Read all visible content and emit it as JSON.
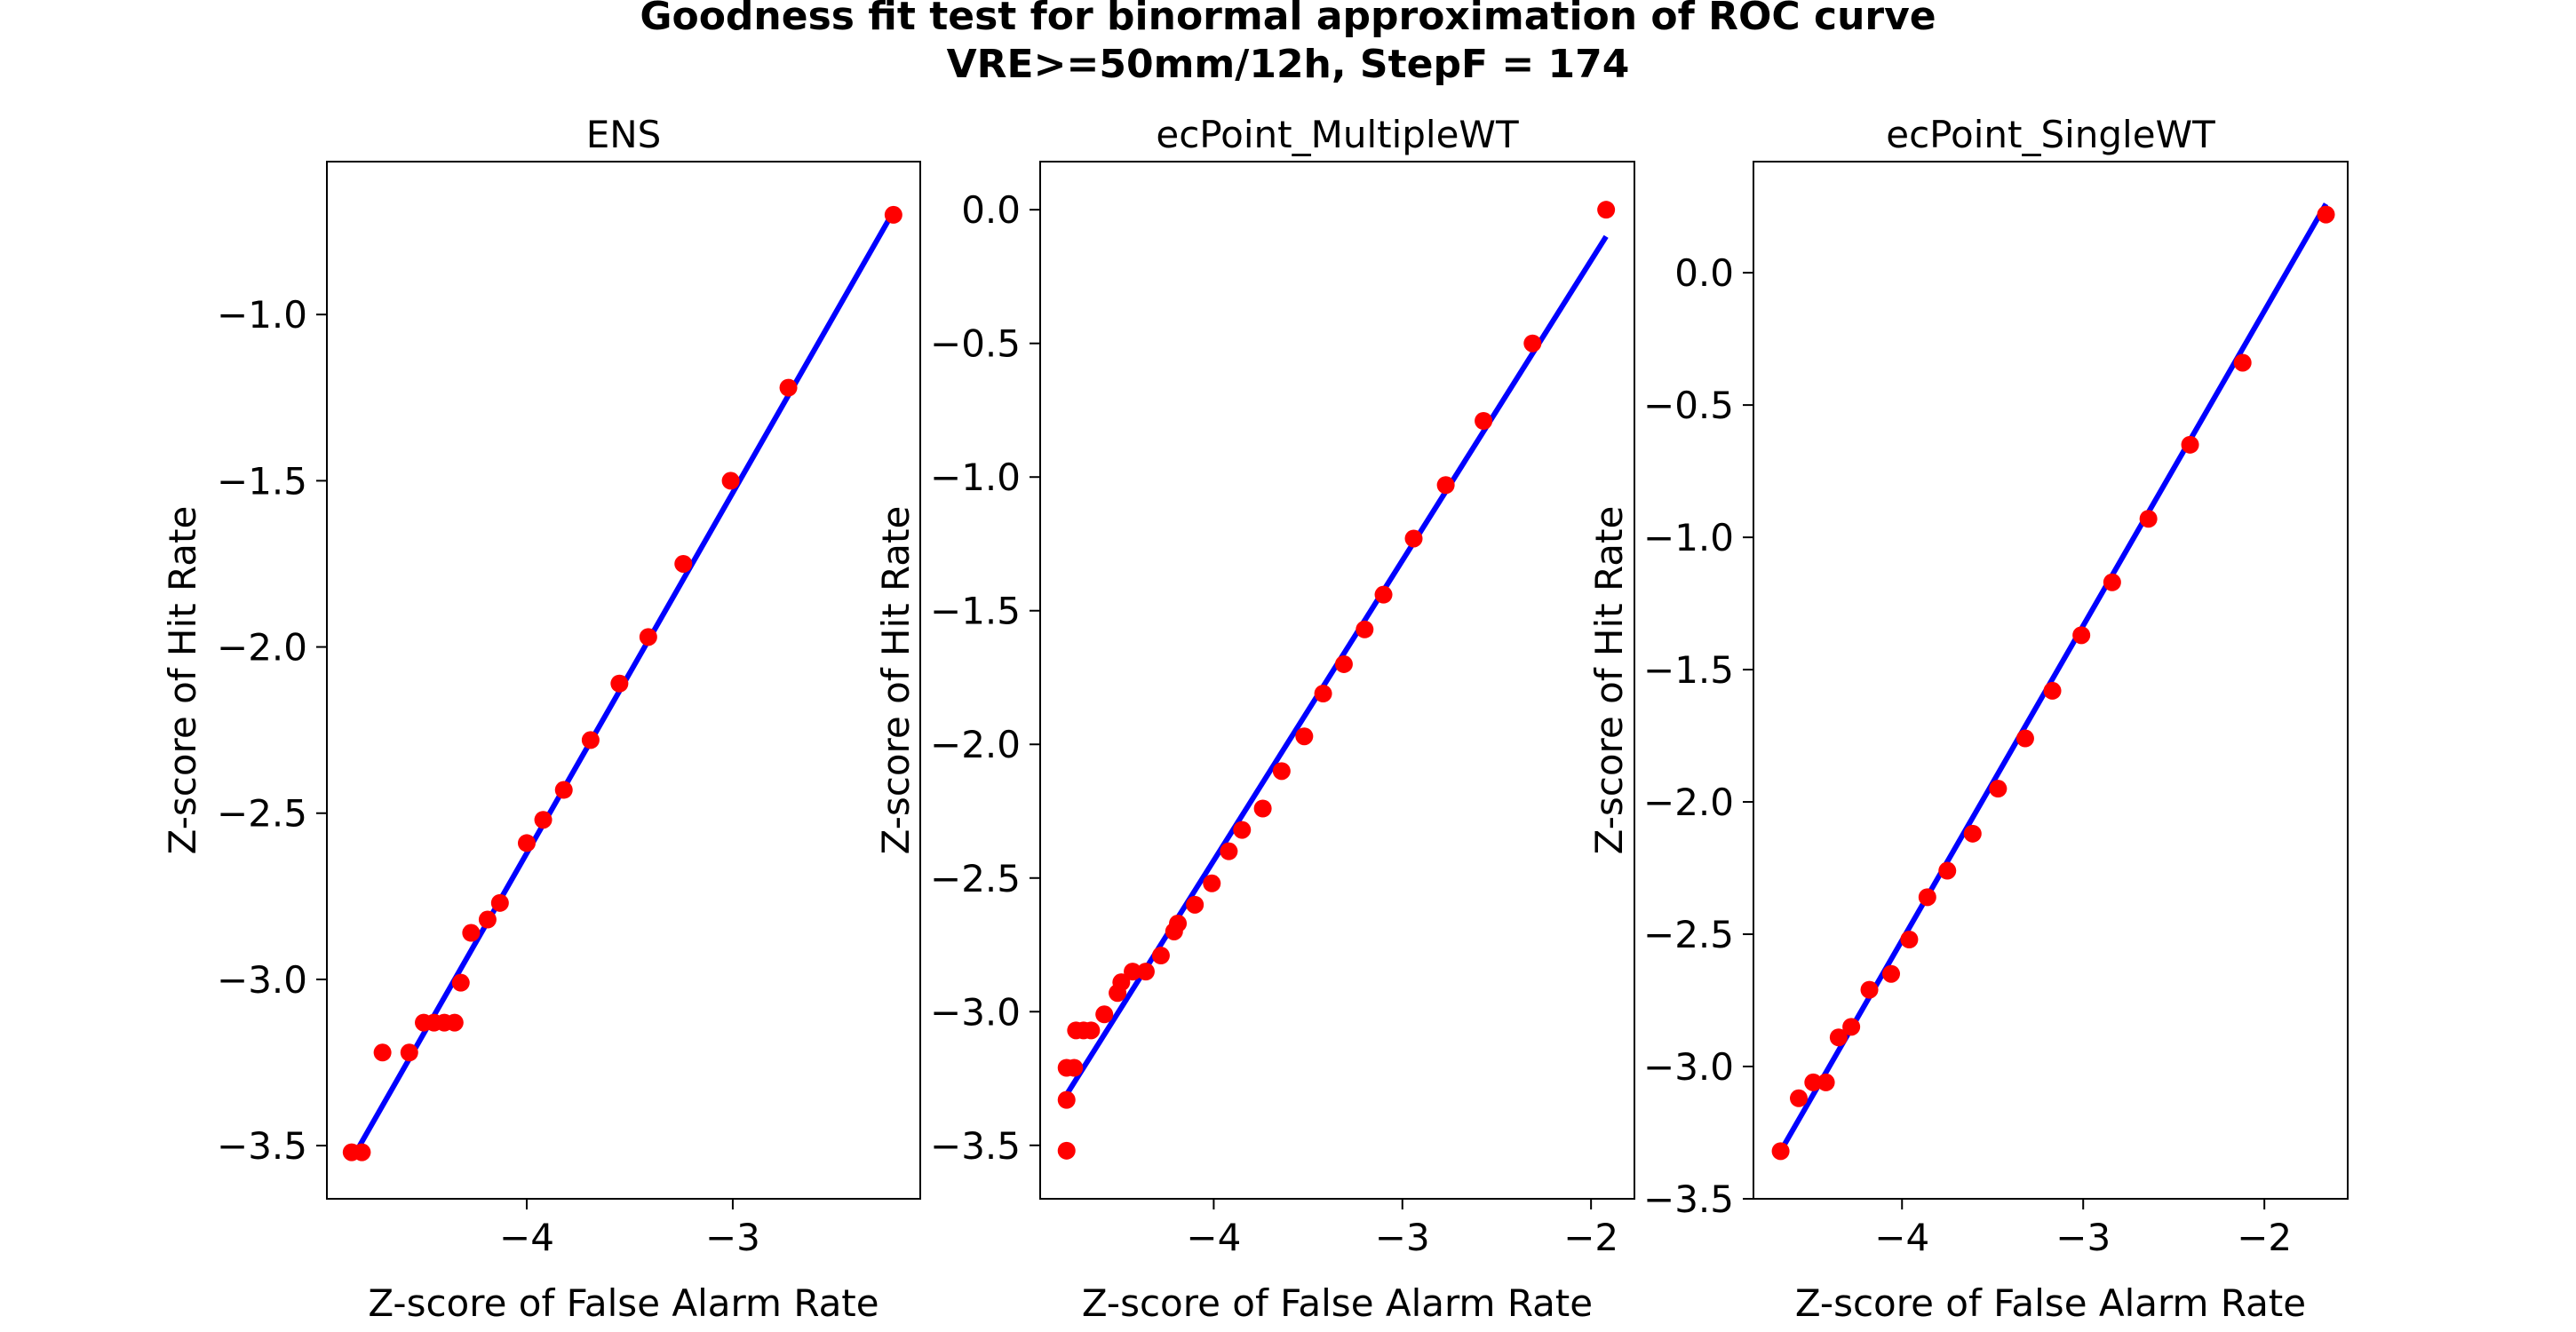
{
  "figure": {
    "title_line1": "Goodness fit test for binormal approximation of ROC curve",
    "title_line2": "VRE>=50mm/12h, StepF = 174"
  },
  "colors": {
    "line": "#0000ff",
    "points": "#ff0000",
    "axes": "#000000",
    "background": "#ffffff"
  },
  "chart_data": [
    {
      "type": "scatter",
      "title": "ENS",
      "xlabel": "Z-score of False Alarm Rate",
      "ylabel": "Z-score of Hit Rate",
      "xlim": [
        -4.97,
        -2.09
      ],
      "ylim": [
        -3.66,
        -0.54
      ],
      "xticks": [
        -4,
        -3
      ],
      "yticks": [
        -3.5,
        -3.0,
        -2.5,
        -2.0,
        -1.5,
        -1.0
      ],
      "xtick_labels": [
        "−4",
        "−3"
      ],
      "ytick_labels": [
        "−3.5",
        "−3.0",
        "−2.5",
        "−2.0",
        "−1.5",
        "−1.0"
      ],
      "grid": false,
      "series": [
        {
          "kind": "points",
          "x": [
            -4.85,
            -4.8,
            -4.7,
            -4.57,
            -4.5,
            -4.45,
            -4.4,
            -4.35,
            -4.32,
            -4.27,
            -4.19,
            -4.13,
            -4.0,
            -3.92,
            -3.82,
            -3.69,
            -3.55,
            -3.41,
            -3.24,
            -3.01,
            -2.73,
            -2.22
          ],
          "y": [
            -3.52,
            -3.52,
            -3.22,
            -3.22,
            -3.13,
            -3.13,
            -3.13,
            -3.13,
            -3.01,
            -2.86,
            -2.82,
            -2.77,
            -2.59,
            -2.52,
            -2.43,
            -2.28,
            -2.11,
            -1.97,
            -1.75,
            -1.5,
            -1.22,
            -0.7
          ]
        },
        {
          "kind": "line",
          "x": [
            -4.82,
            -2.22
          ],
          "y": [
            -3.51,
            -0.69
          ]
        }
      ]
    },
    {
      "type": "scatter",
      "title": "ecPoint_MultipleWT",
      "xlabel": "Z-score of False Alarm Rate",
      "ylabel": "Z-score of Hit Rate",
      "xlim": [
        -4.92,
        -1.77
      ],
      "ylim": [
        -3.7,
        0.18
      ],
      "xticks": [
        -4,
        -3,
        -2
      ],
      "yticks": [
        -3.5,
        -3.0,
        -2.5,
        -2.0,
        -1.5,
        -1.0,
        -0.5,
        0.0
      ],
      "xtick_labels": [
        "−4",
        "−3",
        "−2"
      ],
      "ytick_labels": [
        "−3.5",
        "−3.0",
        "−2.5",
        "−2.0",
        "−1.5",
        "−1.0",
        "−0.5",
        "0.0"
      ],
      "grid": false,
      "series": [
        {
          "kind": "points",
          "x": [
            -4.78,
            -4.78,
            -4.78,
            -4.74,
            -4.73,
            -4.69,
            -4.65,
            -4.58,
            -4.51,
            -4.49,
            -4.43,
            -4.36,
            -4.28,
            -4.21,
            -4.19,
            -4.1,
            -4.01,
            -3.92,
            -3.85,
            -3.74,
            -3.64,
            -3.52,
            -3.42,
            -3.31,
            -3.2,
            -3.1,
            -2.94,
            -2.77,
            -2.57,
            -2.31,
            -1.92
          ],
          "y": [
            -3.52,
            -3.33,
            -3.21,
            -3.21,
            -3.07,
            -3.07,
            -3.07,
            -3.01,
            -2.93,
            -2.89,
            -2.85,
            -2.85,
            -2.79,
            -2.7,
            -2.67,
            -2.6,
            -2.52,
            -2.4,
            -2.32,
            -2.24,
            -2.1,
            -1.97,
            -1.81,
            -1.7,
            -1.57,
            -1.44,
            -1.23,
            -1.03,
            -0.79,
            -0.5,
            0.0
          ]
        },
        {
          "kind": "line",
          "x": [
            -4.78,
            -1.92
          ],
          "y": [
            -3.31,
            -0.1
          ]
        }
      ]
    },
    {
      "type": "scatter",
      "title": "ecPoint_SingleWT",
      "xlabel": "Z-score of False Alarm Rate",
      "ylabel": "Z-score of Hit Rate",
      "xlim": [
        -4.82,
        -1.54
      ],
      "ylim": [
        -3.5,
        0.42
      ],
      "xticks": [
        -4,
        -3,
        -2
      ],
      "yticks": [
        -3.5,
        -3.0,
        -2.5,
        -2.0,
        -1.5,
        -1.0,
        -0.5,
        0.0
      ],
      "xtick_labels": [
        "−4",
        "−3",
        "−2"
      ],
      "ytick_labels": [
        "−3.5",
        "−3.0",
        "−2.5",
        "−2.0",
        "−1.5",
        "−1.0",
        "−0.5",
        "0.0"
      ],
      "grid": false,
      "series": [
        {
          "kind": "points",
          "x": [
            -4.67,
            -4.57,
            -4.49,
            -4.42,
            -4.35,
            -4.28,
            -4.18,
            -4.06,
            -3.96,
            -3.86,
            -3.75,
            -3.61,
            -3.47,
            -3.32,
            -3.17,
            -3.01,
            -2.84,
            -2.64,
            -2.41,
            -2.12,
            -1.66
          ],
          "y": [
            -3.32,
            -3.12,
            -3.06,
            -3.06,
            -2.89,
            -2.85,
            -2.71,
            -2.65,
            -2.52,
            -2.36,
            -2.26,
            -2.12,
            -1.95,
            -1.76,
            -1.58,
            -1.37,
            -1.17,
            -0.93,
            -0.65,
            -0.34,
            0.22
          ]
        },
        {
          "kind": "line",
          "x": [
            -4.67,
            -1.66
          ],
          "y": [
            -3.32,
            0.26
          ]
        }
      ]
    }
  ]
}
